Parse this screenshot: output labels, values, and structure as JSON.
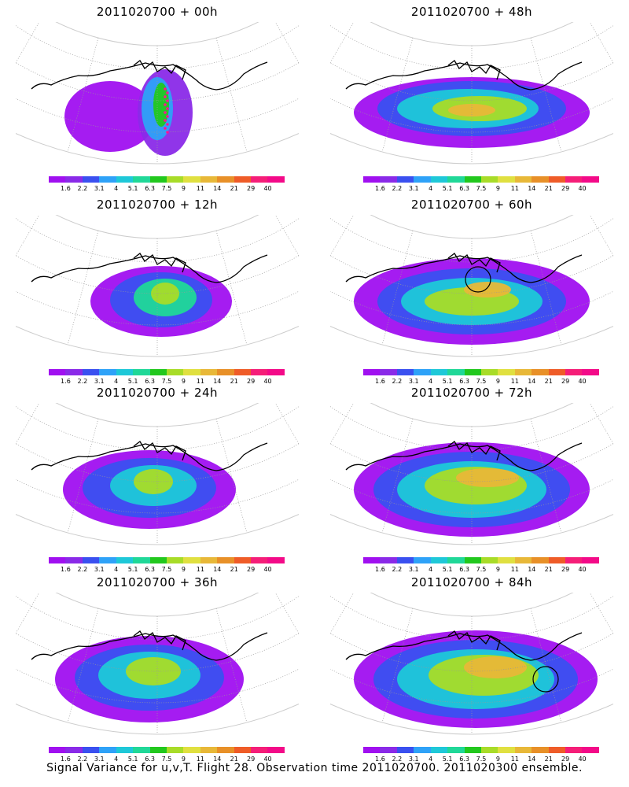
{
  "panels": [
    {
      "title": "2011020700 + 00h"
    },
    {
      "title": "2011020700 + 48h"
    },
    {
      "title": "2011020700 + 12h"
    },
    {
      "title": "2011020700 + 60h"
    },
    {
      "title": "2011020700 + 24h"
    },
    {
      "title": "2011020700 + 72h"
    },
    {
      "title": "2011020700 + 36h"
    },
    {
      "title": "2011020700 + 84h"
    }
  ],
  "colorbar": {
    "colors": [
      "#a010f0",
      "#8a2ae8",
      "#3a50f0",
      "#2ea2f8",
      "#1ec8d8",
      "#20d898",
      "#22c81e",
      "#a8dc28",
      "#e0e040",
      "#e8b838",
      "#e89028",
      "#ef5c28",
      "#f51e78",
      "#f30a88"
    ],
    "labels": [
      "1.6",
      "2.2",
      "3.1",
      "4",
      "5.1",
      "6.3",
      "7.5",
      "9",
      "11",
      "14",
      "21",
      "29",
      "40"
    ]
  },
  "caption": "Signal Variance for u,v,T. Flight 28. Observation time 2011020700. 2011020300 ensemble."
}
